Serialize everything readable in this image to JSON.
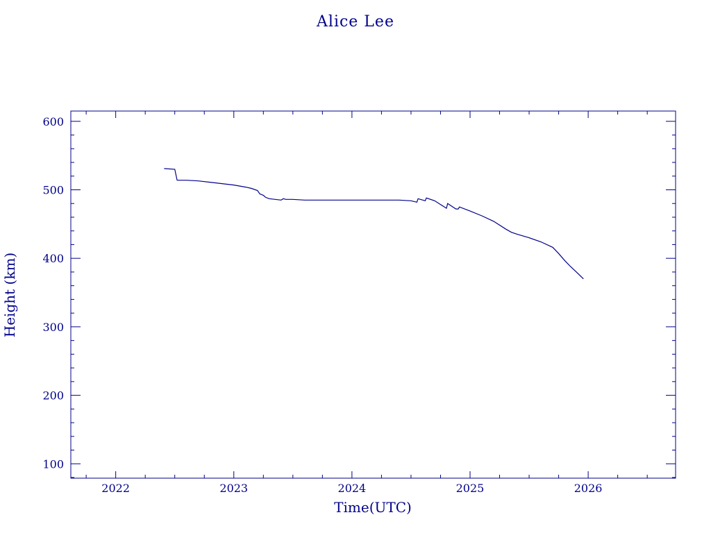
{
  "colors": {
    "foreground": "#00008b",
    "background": "#ffffff"
  },
  "chart_data": {
    "type": "line",
    "title": "Alice Lee",
    "xlabel": "Time(UTC)",
    "ylabel": "Height (km)",
    "xlim": [
      2021.62,
      2026.74
    ],
    "ylim": [
      79,
      615
    ],
    "x_ticks": [
      "2022",
      "2023",
      "2024",
      "2025",
      "2026"
    ],
    "y_ticks": [
      "100",
      "200",
      "300",
      "400",
      "500",
      "600"
    ],
    "grid": false,
    "series": [
      {
        "x": [
          2022.41,
          2022.5,
          2022.52,
          2022.6,
          2022.7,
          2022.8,
          2022.9,
          2023.0,
          2023.1,
          2023.15,
          2023.2,
          2023.22,
          2023.25,
          2023.27,
          2023.3,
          2023.35,
          2023.4,
          2023.42,
          2023.44,
          2023.5,
          2023.6,
          2023.7,
          2023.8,
          2023.9,
          2024.0,
          2024.1,
          2024.2,
          2024.3,
          2024.4,
          2024.5,
          2024.55,
          2024.56,
          2024.62,
          2024.63,
          2024.7,
          2024.8,
          2024.81,
          2024.88,
          2024.9,
          2024.91,
          2025.0,
          2025.1,
          2025.2,
          2025.3,
          2025.35,
          2025.4,
          2025.5,
          2025.6,
          2025.7,
          2025.75,
          2025.8,
          2025.85,
          2025.9,
          2025.96
        ],
        "y": [
          531,
          530,
          514,
          514,
          513,
          511,
          509,
          507,
          504,
          502,
          499,
          494,
          492,
          489,
          487,
          486,
          485,
          487,
          486,
          486,
          485,
          485,
          485,
          485,
          485,
          485,
          485,
          485,
          485,
          484,
          482,
          487,
          484,
          488,
          484,
          473,
          480,
          472,
          472,
          475,
          469,
          462,
          454,
          443,
          438,
          435,
          430,
          424,
          416,
          407,
          397,
          388,
          380,
          370
        ]
      }
    ]
  }
}
